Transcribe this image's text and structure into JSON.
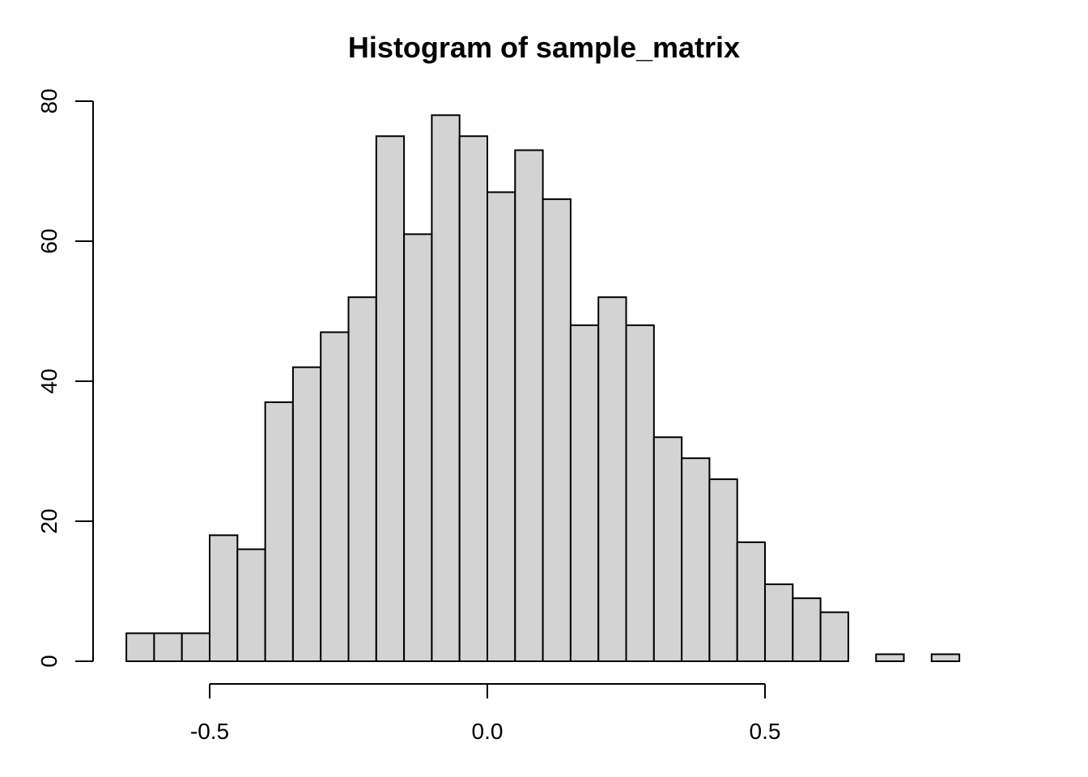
{
  "chart_data": {
    "type": "bar",
    "title": "Histogram of sample_matrix",
    "xlabel": "",
    "ylabel": "",
    "bar_fill": "#d3d3d3",
    "bar_stroke": "#000000",
    "bin_width": 0.05,
    "bins": [
      {
        "start": -0.65,
        "end": -0.6,
        "count": 4
      },
      {
        "start": -0.6,
        "end": -0.55,
        "count": 4
      },
      {
        "start": -0.55,
        "end": -0.5,
        "count": 4
      },
      {
        "start": -0.5,
        "end": -0.45,
        "count": 18
      },
      {
        "start": -0.45,
        "end": -0.4,
        "count": 16
      },
      {
        "start": -0.4,
        "end": -0.35,
        "count": 37
      },
      {
        "start": -0.35,
        "end": -0.3,
        "count": 42
      },
      {
        "start": -0.3,
        "end": -0.25,
        "count": 47
      },
      {
        "start": -0.25,
        "end": -0.2,
        "count": 52
      },
      {
        "start": -0.2,
        "end": -0.15,
        "count": 75
      },
      {
        "start": -0.15,
        "end": -0.1,
        "count": 61
      },
      {
        "start": -0.1,
        "end": -0.05,
        "count": 78
      },
      {
        "start": -0.05,
        "end": 0.0,
        "count": 75
      },
      {
        "start": 0.0,
        "end": 0.05,
        "count": 67
      },
      {
        "start": 0.05,
        "end": 0.1,
        "count": 73
      },
      {
        "start": 0.1,
        "end": 0.15,
        "count": 66
      },
      {
        "start": 0.15,
        "end": 0.2,
        "count": 48
      },
      {
        "start": 0.2,
        "end": 0.25,
        "count": 52
      },
      {
        "start": 0.25,
        "end": 0.3,
        "count": 48
      },
      {
        "start": 0.3,
        "end": 0.35,
        "count": 32
      },
      {
        "start": 0.35,
        "end": 0.4,
        "count": 29
      },
      {
        "start": 0.4,
        "end": 0.45,
        "count": 26
      },
      {
        "start": 0.45,
        "end": 0.5,
        "count": 17
      },
      {
        "start": 0.5,
        "end": 0.55,
        "count": 11
      },
      {
        "start": 0.55,
        "end": 0.6,
        "count": 9
      },
      {
        "start": 0.6,
        "end": 0.65,
        "count": 7
      },
      {
        "start": 0.65,
        "end": 0.7,
        "count": 0
      },
      {
        "start": 0.7,
        "end": 0.75,
        "count": 1
      },
      {
        "start": 0.75,
        "end": 0.8,
        "count": 0
      },
      {
        "start": 0.8,
        "end": 0.85,
        "count": 1
      }
    ],
    "xlim": [
      -0.65,
      0.85
    ],
    "ylim": [
      0,
      80
    ],
    "x_ticks": [
      {
        "value": -0.5,
        "label": "-0.5"
      },
      {
        "value": 0.0,
        "label": "0.0"
      },
      {
        "value": 0.5,
        "label": "0.5"
      }
    ],
    "y_ticks": [
      {
        "value": 0,
        "label": "0"
      },
      {
        "value": 20,
        "label": "20"
      },
      {
        "value": 40,
        "label": "40"
      },
      {
        "value": 60,
        "label": "60"
      },
      {
        "value": 80,
        "label": "80"
      }
    ],
    "grid": false,
    "legend": "none"
  }
}
